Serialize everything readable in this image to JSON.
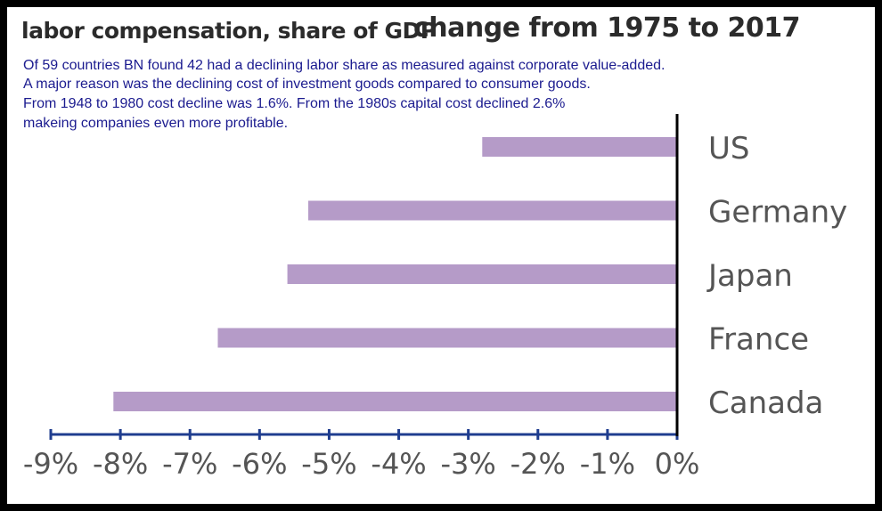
{
  "title_part1": "labor compensation, share of GDP",
  "title_part2": "change from 1975 to 2017",
  "note_lines": [
    "Of 59 countries  BN found 42 had a declining labor share as  measured against corporate value-added.",
    "A major reason was the declining cost of investment goods compared to consumer goods.",
    "From 1948 to 1980 cost decline was 1.6%. From the 1980s capital cost declined 2.6%",
    "makeing companies even more profitable."
  ],
  "colors": {
    "bar": "#b59bc8",
    "axis": "#1f3d8f",
    "zero_line": "#000000",
    "label": "#555555",
    "title": "#2b2b2b",
    "note": "#1b1b8f"
  },
  "chart_data": {
    "type": "bar",
    "orientation": "horizontal",
    "title": "labor compensation, share of GDP change from 1975 to 2017",
    "categories": [
      "US",
      "Germany",
      "Japan",
      "France",
      "Canada"
    ],
    "values": [
      -2.8,
      -5.3,
      -5.6,
      -6.6,
      -8.1
    ],
    "unit": "%",
    "xlim": [
      -9,
      0
    ],
    "tick_values": [
      -9,
      -8,
      -7,
      -6,
      -5,
      -4,
      -3,
      -2,
      -1,
      0
    ],
    "tick_labels": [
      "-9%",
      "-8%",
      "-7%",
      "-6%",
      "-5%",
      "-4%",
      "-3%",
      "-2%",
      "-1%",
      "0%"
    ],
    "category_labels_position": "right of zero line",
    "grid": false,
    "legend": false
  }
}
